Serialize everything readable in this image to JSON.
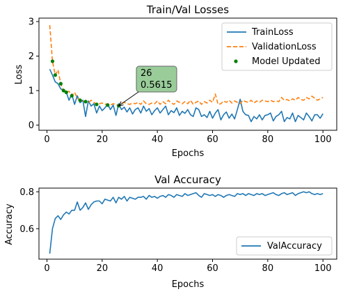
{
  "colors": {
    "train": "#1f77b4",
    "validation": "#ff7f0e",
    "updated": "#008000",
    "annotation_bg": "#99cc99",
    "accuracy": "#1f77b4"
  },
  "chart_data": [
    {
      "type": "line",
      "title": "Train/Val Losses",
      "xlabel": "Epochs",
      "ylabel": "Loss",
      "xlim": [
        -2.9,
        105
      ],
      "ylim": [
        -0.15,
        3.1
      ],
      "xticks": [
        0,
        20,
        40,
        60,
        80,
        100
      ],
      "yticks": [
        0,
        1,
        2,
        3
      ],
      "legend_position": "top-right",
      "annotation": {
        "epoch": 26,
        "value": 0.5615,
        "text_lines": [
          "26",
          "0.5615"
        ]
      },
      "series": [
        {
          "name": "TrainLoss",
          "style": "solid",
          "x": [
            1,
            2,
            3,
            4,
            5,
            6,
            7,
            8,
            9,
            10,
            11,
            12,
            13,
            14,
            15,
            16,
            17,
            18,
            19,
            20,
            21,
            22,
            23,
            24,
            25,
            26,
            27,
            28,
            29,
            30,
            31,
            32,
            33,
            34,
            35,
            36,
            37,
            38,
            39,
            40,
            41,
            42,
            43,
            44,
            45,
            46,
            47,
            48,
            49,
            50,
            51,
            52,
            53,
            54,
            55,
            56,
            57,
            58,
            59,
            60,
            61,
            62,
            63,
            64,
            65,
            66,
            67,
            68,
            69,
            70,
            71,
            72,
            73,
            74,
            75,
            76,
            77,
            78,
            79,
            80,
            81,
            82,
            83,
            84,
            85,
            86,
            87,
            88,
            89,
            90,
            91,
            92,
            93,
            94,
            95,
            96,
            97,
            98,
            99,
            100
          ],
          "values": [
            1.62,
            1.45,
            1.25,
            1.2,
            1.05,
            1.0,
            0.95,
            0.72,
            0.9,
            0.6,
            0.85,
            0.65,
            0.72,
            0.25,
            0.7,
            0.55,
            0.62,
            0.35,
            0.55,
            0.42,
            0.5,
            0.6,
            0.45,
            0.58,
            0.28,
            0.62,
            0.45,
            0.52,
            0.38,
            0.5,
            0.32,
            0.45,
            0.5,
            0.35,
            0.55,
            0.4,
            0.48,
            0.3,
            0.42,
            0.5,
            0.35,
            0.45,
            0.55,
            0.3,
            0.42,
            0.36,
            0.5,
            0.28,
            0.4,
            0.34,
            0.45,
            0.3,
            0.25,
            0.5,
            0.45,
            0.25,
            0.3,
            0.22,
            0.4,
            0.2,
            0.35,
            0.45,
            0.15,
            0.3,
            0.38,
            0.2,
            0.32,
            0.18,
            0.45,
            0.75,
            0.4,
            0.3,
            0.28,
            0.1,
            0.25,
            0.18,
            0.3,
            0.15,
            0.28,
            0.3,
            0.35,
            0.12,
            0.25,
            0.3,
            0.4,
            0.1,
            0.22,
            0.18,
            0.35,
            0.1,
            0.28,
            0.22,
            0.15,
            0.35,
            0.25,
            0.12,
            0.3,
            0.3,
            0.2,
            0.33
          ]
        },
        {
          "name": "ValidationLoss",
          "style": "dashed",
          "x": [
            1,
            2,
            3,
            4,
            5,
            6,
            7,
            8,
            9,
            10,
            11,
            12,
            13,
            14,
            15,
            16,
            17,
            18,
            19,
            20,
            21,
            22,
            23,
            24,
            25,
            26,
            27,
            28,
            29,
            30,
            31,
            32,
            33,
            34,
            35,
            36,
            37,
            38,
            39,
            40,
            41,
            42,
            43,
            44,
            45,
            46,
            47,
            48,
            49,
            50,
            51,
            52,
            53,
            54,
            55,
            56,
            57,
            58,
            59,
            60,
            61,
            62,
            63,
            64,
            65,
            66,
            67,
            68,
            69,
            70,
            71,
            72,
            73,
            74,
            75,
            76,
            77,
            78,
            79,
            80,
            81,
            82,
            83,
            84,
            85,
            86,
            87,
            88,
            89,
            90,
            91,
            92,
            93,
            94,
            95,
            96,
            97,
            98,
            99,
            100
          ],
          "values": [
            2.9,
            1.85,
            1.45,
            1.6,
            1.2,
            1.0,
            0.95,
            0.98,
            0.85,
            0.95,
            0.78,
            0.72,
            0.7,
            0.68,
            0.65,
            0.72,
            0.66,
            0.6,
            0.62,
            0.64,
            0.6,
            0.62,
            0.58,
            0.62,
            0.6,
            0.56,
            0.62,
            0.66,
            0.62,
            0.6,
            0.64,
            0.62,
            0.66,
            0.6,
            0.7,
            0.62,
            0.6,
            0.64,
            0.62,
            0.7,
            0.6,
            0.68,
            0.62,
            0.72,
            0.64,
            0.6,
            0.7,
            0.66,
            0.62,
            0.68,
            0.62,
            0.72,
            0.6,
            0.66,
            0.7,
            0.6,
            0.68,
            0.64,
            0.72,
            0.66,
            0.9,
            0.6,
            0.62,
            0.7,
            0.66,
            0.72,
            0.64,
            0.7,
            0.66,
            0.62,
            0.72,
            0.68,
            0.66,
            0.72,
            0.64,
            0.7,
            0.66,
            0.72,
            0.7,
            0.68,
            0.72,
            0.68,
            0.7,
            0.68,
            0.8,
            0.72,
            0.74,
            0.7,
            0.76,
            0.72,
            0.8,
            0.74,
            0.72,
            0.8,
            0.76,
            0.84,
            0.78,
            0.72,
            0.76,
            0.8
          ]
        },
        {
          "name": "Model Updated",
          "style": "markers",
          "x": [
            2,
            3,
            5,
            6,
            7,
            9,
            12,
            14,
            18,
            22,
            26
          ],
          "values": [
            1.85,
            1.45,
            1.2,
            1.0,
            0.95,
            0.85,
            0.72,
            0.68,
            0.6,
            0.58,
            0.5615
          ]
        }
      ]
    },
    {
      "type": "line",
      "title": "Val Accuracy",
      "xlabel": "Epochs",
      "ylabel": "Accuracy",
      "xlim": [
        -2.9,
        105
      ],
      "ylim": [
        0.435,
        0.82
      ],
      "xticks": [
        0,
        20,
        40,
        60,
        80,
        100
      ],
      "yticks": [
        0.6,
        0.8
      ],
      "ytick_labels": [
        "0.6",
        "0.8"
      ],
      "legend_position": "bottom-right",
      "series": [
        {
          "name": "ValAccuracy",
          "style": "solid",
          "x": [
            1,
            2,
            3,
            4,
            5,
            6,
            7,
            8,
            9,
            10,
            11,
            12,
            13,
            14,
            15,
            16,
            17,
            18,
            19,
            20,
            21,
            22,
            23,
            24,
            25,
            26,
            27,
            28,
            29,
            30,
            31,
            32,
            33,
            34,
            35,
            36,
            37,
            38,
            39,
            40,
            41,
            42,
            43,
            44,
            45,
            46,
            47,
            48,
            49,
            50,
            51,
            52,
            53,
            54,
            55,
            56,
            57,
            58,
            59,
            60,
            61,
            62,
            63,
            64,
            65,
            66,
            67,
            68,
            69,
            70,
            71,
            72,
            73,
            74,
            75,
            76,
            77,
            78,
            79,
            80,
            81,
            82,
            83,
            84,
            85,
            86,
            87,
            88,
            89,
            90,
            91,
            92,
            93,
            94,
            95,
            96,
            97,
            98,
            99,
            100
          ],
          "values": [
            0.465,
            0.6,
            0.655,
            0.67,
            0.65,
            0.675,
            0.69,
            0.68,
            0.7,
            0.7,
            0.745,
            0.7,
            0.715,
            0.74,
            0.705,
            0.73,
            0.745,
            0.75,
            0.75,
            0.735,
            0.76,
            0.755,
            0.75,
            0.77,
            0.74,
            0.77,
            0.76,
            0.775,
            0.75,
            0.77,
            0.765,
            0.76,
            0.77,
            0.77,
            0.775,
            0.76,
            0.78,
            0.77,
            0.775,
            0.765,
            0.775,
            0.78,
            0.77,
            0.785,
            0.78,
            0.77,
            0.785,
            0.78,
            0.775,
            0.79,
            0.78,
            0.785,
            0.79,
            0.795,
            0.78,
            0.77,
            0.79,
            0.785,
            0.78,
            0.785,
            0.775,
            0.785,
            0.78,
            0.77,
            0.78,
            0.785,
            0.78,
            0.775,
            0.79,
            0.785,
            0.79,
            0.78,
            0.79,
            0.785,
            0.78,
            0.79,
            0.785,
            0.79,
            0.78,
            0.785,
            0.79,
            0.795,
            0.785,
            0.78,
            0.79,
            0.795,
            0.785,
            0.79,
            0.795,
            0.78,
            0.79,
            0.795,
            0.8,
            0.795,
            0.8,
            0.79,
            0.785,
            0.79,
            0.785,
            0.79
          ]
        }
      ]
    }
  ]
}
